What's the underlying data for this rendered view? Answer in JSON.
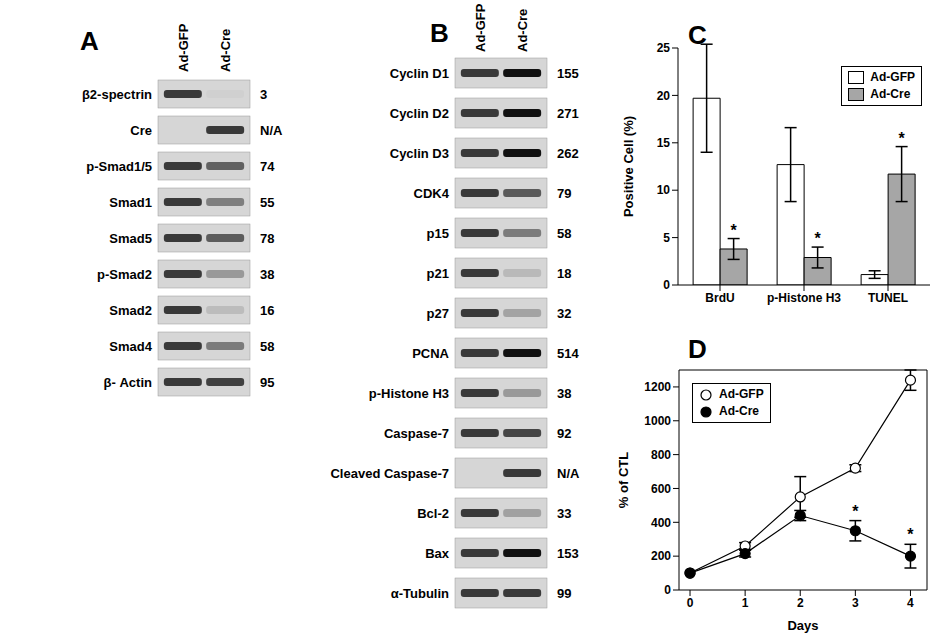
{
  "blots": [
    {
      "panel": "A",
      "lanes": [
        "Ad-GFP",
        "Ad-Cre"
      ],
      "rows": [
        {
          "label": "β2-spectrin",
          "value": 3
        },
        {
          "label": "Cre",
          "value": "N/A"
        },
        {
          "label": "p-Smad1/5",
          "value": 74
        },
        {
          "label": "Smad1",
          "value": 55
        },
        {
          "label": "Smad5",
          "value": 78
        },
        {
          "label": "p-Smad2",
          "value": 38
        },
        {
          "label": "Smad2",
          "value": 16
        },
        {
          "label": "Smad4",
          "value": 58
        },
        {
          "label": "β- Actin",
          "value": 95
        }
      ]
    },
    {
      "panel": "B",
      "lanes": [
        "Ad-GFP",
        "Ad-Cre"
      ],
      "rows": [
        {
          "label": "Cyclin D1",
          "value": 155
        },
        {
          "label": "Cyclin D2",
          "value": 271
        },
        {
          "label": "Cyclin D3",
          "value": 262
        },
        {
          "label": "CDK4",
          "value": 79
        },
        {
          "label": "p15",
          "value": 58
        },
        {
          "label": "p21",
          "value": 18
        },
        {
          "label": "p27",
          "value": 32
        },
        {
          "label": "PCNA",
          "value": 514
        },
        {
          "label": "p-Histone H3",
          "value": 38
        },
        {
          "label": "Caspase-7",
          "value": 92
        },
        {
          "label": "Cleaved Caspase-7",
          "value": "N/A"
        },
        {
          "label": "Bcl-2",
          "value": 33
        },
        {
          "label": "Bax",
          "value": 153
        },
        {
          "label": "α-Tubulin",
          "value": 99
        }
      ]
    }
  ],
  "chart_data": [
    {
      "panel": "C",
      "type": "bar",
      "categories": [
        "BrdU",
        "p-Histone H3",
        "TUNEL"
      ],
      "y_label": "Positive Cell (%)",
      "ylim": [
        0,
        25
      ],
      "yticks": [
        0,
        5,
        10,
        15,
        20,
        25
      ],
      "grid": false,
      "legend": "upper right",
      "series": [
        {
          "name": "Ad-GFP",
          "color": "#ffffff",
          "values": [
            19.7,
            12.7,
            1.1
          ],
          "errors": [
            5.7,
            3.9,
            0.4
          ]
        },
        {
          "name": "Ad-Cre",
          "color": "#a6a6a6",
          "values": [
            3.8,
            2.9,
            11.7
          ],
          "errors": [
            1.1,
            1.1,
            2.9
          ],
          "annotations": [
            "*",
            "*",
            "*"
          ]
        }
      ]
    },
    {
      "panel": "D",
      "type": "line",
      "x": [
        0,
        1,
        2,
        3,
        4
      ],
      "x_label": "Days",
      "y_label": "% of CTL",
      "xlim": [
        -0.2,
        4.3
      ],
      "xticks": [
        0,
        1,
        2,
        3,
        4
      ],
      "ylim": [
        0,
        1300
      ],
      "yticks": [
        0,
        200,
        400,
        600,
        800,
        1000,
        1200
      ],
      "grid": false,
      "legend": "upper left",
      "series": [
        {
          "name": "Ad-GFP",
          "color": "#000000",
          "marker": "open circle",
          "values": [
            100,
            260,
            550,
            720,
            1240
          ],
          "errors": [
            0,
            20,
            120,
            20,
            60
          ]
        },
        {
          "name": "Ad-Cre",
          "color": "#000000",
          "marker": "filled circle",
          "values": [
            100,
            215,
            440,
            350,
            200
          ],
          "errors": [
            0,
            20,
            30,
            60,
            70
          ],
          "annotations": [
            null,
            null,
            null,
            "*",
            "*"
          ]
        }
      ]
    }
  ]
}
